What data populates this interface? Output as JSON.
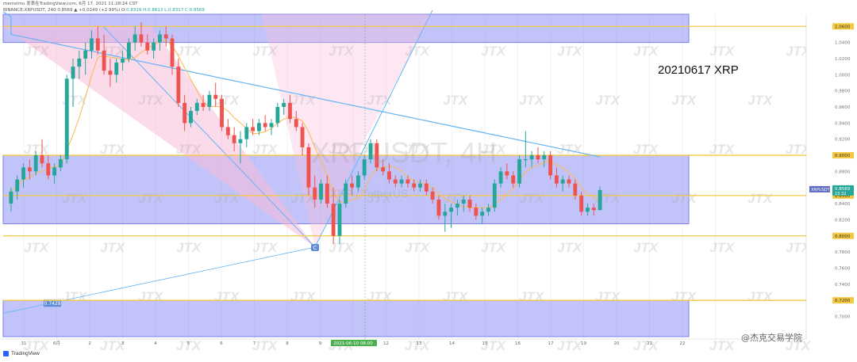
{
  "header": {
    "line1": "memsimu 发表在TradingView.com, 6月 17, 2021 11:28:24 CST",
    "line2_prefix": "BINANCE:XRPUSDT, 240 0.8569 ▲ +0.0249 (+2.99%) O:",
    "line2_values": "0.8319 H:0.8613 L:0.8317 C:0.8569"
  },
  "annotation": "20210617 XRP",
  "watermark": {
    "symbol": "XRPUSDT, 4H",
    "subtitle": "XRP / TetherUS",
    "tile": "JTX"
  },
  "footer": {
    "brand": "TradingView"
  },
  "credit": "@杰克交易学院",
  "pattern_label": "C",
  "colors": {
    "up": "#26a69a",
    "down": "#ef5350",
    "zone": "#9a9cf5",
    "level": "#f5c842",
    "ma_blue": "#64b5f6",
    "ma_orange": "#ffb74d",
    "pink": "#f8bbd9"
  },
  "chart_data": {
    "type": "candlestick",
    "symbol": "XRPUSDT",
    "timeframe": "4H",
    "ylim": [
      0.672,
      1.075
    ],
    "y_ticks": [
      1.06,
      1.04,
      1.02,
      1.0,
      0.98,
      0.96,
      0.94,
      0.92,
      0.9,
      0.88,
      0.86,
      0.85,
      0.84,
      0.82,
      0.8,
      0.78,
      0.76,
      0.74,
      0.72,
      0.7
    ],
    "x_labels": [
      "31",
      "6月",
      "2",
      "3",
      "4",
      "5",
      "6",
      "7",
      "8",
      "9",
      "2021-06-10 08:00",
      "12",
      "13",
      "14",
      "15",
      "16",
      "17",
      "19",
      "20",
      "21",
      "22"
    ],
    "levels": [
      {
        "value": 1.06,
        "label": "1.0600"
      },
      {
        "value": 0.9,
        "label": "0.9000"
      },
      {
        "value": 0.85,
        "label": "0.8500"
      },
      {
        "value": 0.8,
        "label": "0.8000"
      },
      {
        "value": 0.72,
        "label": "0.7200"
      }
    ],
    "current_price": {
      "value": 0.8569,
      "label": "XRPUSDT",
      "price": "0.8569",
      "countdown": "23:32"
    },
    "zones": [
      {
        "from": 1.04,
        "to": 1.075
      },
      {
        "from": 0.815,
        "to": 0.9
      },
      {
        "from": 0.675,
        "to": 0.72
      }
    ],
    "pattern_point": {
      "label": "C",
      "price": 0.786
    },
    "line_label": "0.7429",
    "candles": [
      [
        0.84,
        0.86,
        0.83,
        0.855
      ],
      [
        0.855,
        0.875,
        0.845,
        0.87
      ],
      [
        0.87,
        0.89,
        0.86,
        0.885
      ],
      [
        0.885,
        0.895,
        0.87,
        0.88
      ],
      [
        0.88,
        0.905,
        0.875,
        0.9
      ],
      [
        0.9,
        0.92,
        0.885,
        0.89
      ],
      [
        0.89,
        0.9,
        0.87,
        0.875
      ],
      [
        0.875,
        0.89,
        0.865,
        0.885
      ],
      [
        0.885,
        0.9,
        0.88,
        0.895
      ],
      [
        0.895,
        1.0,
        0.89,
        0.995
      ],
      [
        0.995,
        1.02,
        0.96,
        1.01
      ],
      [
        1.01,
        1.03,
        0.995,
        1.02
      ],
      [
        1.02,
        1.04,
        1.0,
        1.03
      ],
      [
        1.03,
        1.055,
        1.02,
        1.045
      ],
      [
        1.045,
        1.06,
        1.025,
        1.03
      ],
      [
        1.03,
        1.05,
        1.0,
        1.005
      ],
      [
        1.005,
        1.02,
        0.985,
        1.0
      ],
      [
        1.0,
        1.02,
        0.99,
        1.015
      ],
      [
        1.015,
        1.03,
        1.005,
        1.02
      ],
      [
        1.02,
        1.045,
        1.015,
        1.04
      ],
      [
        1.04,
        1.06,
        1.03,
        1.05
      ],
      [
        1.05,
        1.065,
        1.035,
        1.04
      ],
      [
        1.04,
        1.05,
        1.025,
        1.03
      ],
      [
        1.03,
        1.045,
        1.02,
        1.04
      ],
      [
        1.04,
        1.055,
        1.03,
        1.05
      ],
      [
        1.05,
        1.06,
        1.035,
        1.045
      ],
      [
        1.045,
        1.05,
        1.0,
        1.01
      ],
      [
        1.01,
        1.02,
        0.96,
        0.965
      ],
      [
        0.965,
        0.975,
        0.93,
        0.94
      ],
      [
        0.94,
        0.96,
        0.935,
        0.955
      ],
      [
        0.955,
        0.97,
        0.95,
        0.965
      ],
      [
        0.965,
        0.975,
        0.955,
        0.96
      ],
      [
        0.96,
        0.98,
        0.955,
        0.975
      ],
      [
        0.975,
        0.99,
        0.96,
        0.97
      ],
      [
        0.97,
        0.975,
        0.93,
        0.935
      ],
      [
        0.935,
        0.945,
        0.92,
        0.925
      ],
      [
        0.925,
        0.935,
        0.905,
        0.915
      ],
      [
        0.915,
        0.93,
        0.89,
        0.92
      ],
      [
        0.92,
        0.94,
        0.91,
        0.935
      ],
      [
        0.935,
        0.945,
        0.925,
        0.93
      ],
      [
        0.93,
        0.945,
        0.925,
        0.94
      ],
      [
        0.94,
        0.95,
        0.93,
        0.935
      ],
      [
        0.935,
        0.945,
        0.925,
        0.94
      ],
      [
        0.94,
        0.965,
        0.935,
        0.96
      ],
      [
        0.96,
        0.97,
        0.95,
        0.965
      ],
      [
        0.965,
        0.975,
        0.94,
        0.945
      ],
      [
        0.945,
        0.955,
        0.93,
        0.935
      ],
      [
        0.935,
        0.94,
        0.9,
        0.91
      ],
      [
        0.91,
        0.915,
        0.85,
        0.86
      ],
      [
        0.86,
        0.875,
        0.835,
        0.845
      ],
      [
        0.845,
        0.87,
        0.84,
        0.865
      ],
      [
        0.865,
        0.875,
        0.835,
        0.84
      ],
      [
        0.84,
        0.86,
        0.79,
        0.8
      ],
      [
        0.8,
        0.845,
        0.79,
        0.84
      ],
      [
        0.84,
        0.87,
        0.835,
        0.865
      ],
      [
        0.865,
        0.875,
        0.85,
        0.86
      ],
      [
        0.86,
        0.88,
        0.855,
        0.875
      ],
      [
        0.875,
        0.9,
        0.87,
        0.895
      ],
      [
        0.895,
        0.92,
        0.89,
        0.915
      ],
      [
        0.915,
        0.92,
        0.88,
        0.885
      ],
      [
        0.885,
        0.895,
        0.875,
        0.88
      ],
      [
        0.88,
        0.89,
        0.865,
        0.87
      ],
      [
        0.87,
        0.875,
        0.86,
        0.865
      ],
      [
        0.865,
        0.875,
        0.86,
        0.87
      ],
      [
        0.87,
        0.875,
        0.86,
        0.865
      ],
      [
        0.865,
        0.87,
        0.855,
        0.86
      ],
      [
        0.86,
        0.87,
        0.855,
        0.865
      ],
      [
        0.865,
        0.87,
        0.85,
        0.855
      ],
      [
        0.855,
        0.86,
        0.84,
        0.845
      ],
      [
        0.845,
        0.85,
        0.82,
        0.825
      ],
      [
        0.825,
        0.84,
        0.805,
        0.83
      ],
      [
        0.83,
        0.84,
        0.81,
        0.835
      ],
      [
        0.835,
        0.845,
        0.825,
        0.84
      ],
      [
        0.84,
        0.85,
        0.83,
        0.845
      ],
      [
        0.845,
        0.85,
        0.83,
        0.835
      ],
      [
        0.835,
        0.84,
        0.82,
        0.825
      ],
      [
        0.825,
        0.835,
        0.815,
        0.83
      ],
      [
        0.83,
        0.84,
        0.825,
        0.835
      ],
      [
        0.835,
        0.87,
        0.83,
        0.865
      ],
      [
        0.865,
        0.885,
        0.86,
        0.88
      ],
      [
        0.88,
        0.89,
        0.87,
        0.875
      ],
      [
        0.875,
        0.88,
        0.86,
        0.865
      ],
      [
        0.865,
        0.9,
        0.86,
        0.895
      ],
      [
        0.895,
        0.93,
        0.885,
        0.895
      ],
      [
        0.895,
        0.905,
        0.885,
        0.9
      ],
      [
        0.9,
        0.91,
        0.89,
        0.895
      ],
      [
        0.895,
        0.905,
        0.885,
        0.9
      ],
      [
        0.9,
        0.905,
        0.87,
        0.875
      ],
      [
        0.875,
        0.885,
        0.86,
        0.865
      ],
      [
        0.865,
        0.875,
        0.855,
        0.87
      ],
      [
        0.87,
        0.875,
        0.86,
        0.865
      ],
      [
        0.865,
        0.87,
        0.845,
        0.85
      ],
      [
        0.85,
        0.855,
        0.825,
        0.83
      ],
      [
        0.83,
        0.84,
        0.825,
        0.835
      ],
      [
        0.835,
        0.84,
        0.825,
        0.832
      ],
      [
        0.832,
        0.8613,
        0.8317,
        0.8569
      ]
    ]
  }
}
